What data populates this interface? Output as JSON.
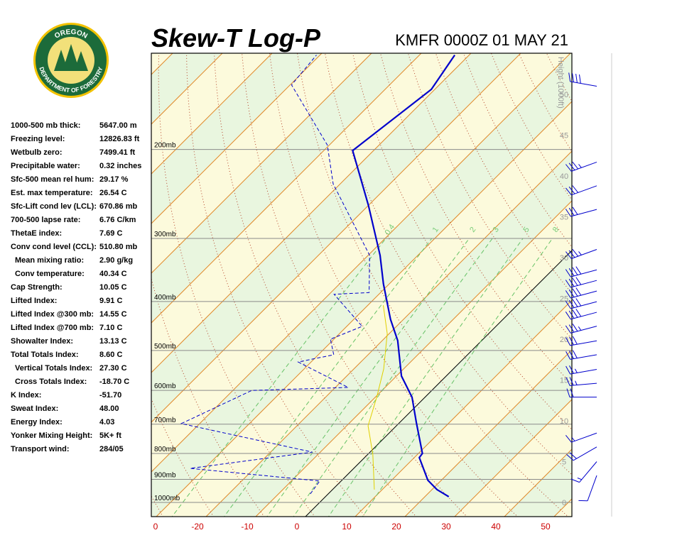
{
  "logo": {
    "top": "OREGON",
    "bottom": "DEPARTMENT OF FORESTRY"
  },
  "header": {
    "title": "Skew-T Log-P",
    "station": "KMFR 0000Z 01 MAY 21"
  },
  "indices": [
    {
      "label": "1000-500 mb thick:",
      "value": "5647.00 m"
    },
    {
      "label": "Freezing level:",
      "value": "12826.83 ft"
    },
    {
      "label": "Wetbulb zero:",
      "value": "7499.41 ft"
    },
    {
      "label": "Precipitable water:",
      "value": "0.32 inches"
    },
    {
      "label": "Sfc-500 mean rel hum:",
      "value": "29.17 %"
    },
    {
      "label": "Est. max temperature:",
      "value": "26.54 C"
    },
    {
      "label": "Sfc-Lift cond lev (LCL):",
      "value": "670.86 mb"
    },
    {
      "label": "700-500 lapse rate:",
      "value": "6.76 C/km"
    },
    {
      "label": "ThetaE index:",
      "value": "7.69 C"
    },
    {
      "label": "Conv cond level (CCL):",
      "value": "510.80 mb"
    },
    {
      "label": "Mean mixing ratio:",
      "value": "2.90 g/kg"
    },
    {
      "label": "Conv temperature:",
      "value": "40.34 C"
    },
    {
      "label": "Cap Strength:",
      "value": "10.05 C"
    },
    {
      "label": "Lifted Index:",
      "value": "9.91 C"
    },
    {
      "label": "Lifted Index @300 mb:",
      "value": "14.55 C"
    },
    {
      "label": "Lifted Index @700 mb:",
      "value": "7.10 C"
    },
    {
      "label": "Showalter Index:",
      "value": "13.13 C"
    },
    {
      "label": "Total Totals Index:",
      "value": "8.60 C"
    },
    {
      "label": "Vertical Totals Index:",
      "value": "27.30 C"
    },
    {
      "label": "Cross Totals Index:",
      "value": "-18.70 C"
    },
    {
      "label": "K Index:",
      "value": "-51.70"
    },
    {
      "label": "Sweat Index:",
      "value": "48.00"
    },
    {
      "label": "Energy Index:",
      "value": "4.03"
    },
    {
      "label": "Yonker Mixing Height:",
      "value": "5K+ ft"
    },
    {
      "label": "Transport wind:",
      "value": "284/05"
    }
  ],
  "chart_data": {
    "type": "skew-t",
    "xticks": [
      {
        "value": -30,
        "label": "0"
      },
      -20,
      -10,
      0,
      10,
      20,
      30,
      40,
      50
    ],
    "pressure_levels": [
      {
        "value": 200,
        "label": "200mb"
      },
      {
        "value": 300,
        "label": "300mb"
      },
      {
        "value": 400,
        "label": "400mb"
      },
      {
        "value": 500,
        "label": "500mb"
      },
      {
        "value": 600,
        "label": "600mb"
      },
      {
        "value": 700,
        "label": "700mb"
      },
      {
        "value": 800,
        "label": "800mb"
      },
      {
        "value": 900,
        "label": "900mb"
      },
      {
        "value": 1000,
        "label": "1000mb"
      }
    ],
    "height_axis": {
      "title": "Height (1000ft)",
      "ticks": [
        0,
        5,
        10,
        15,
        20,
        25,
        30,
        35,
        40,
        45,
        50
      ]
    },
    "mixing_ratio_labels": [
      0.4,
      1,
      2,
      3,
      5,
      8
    ],
    "series": [
      {
        "color": "#0000cc",
        "style": "solid",
        "pressure": [
          974,
          943,
          904,
          815,
          800,
          694,
          619,
          562,
          478,
          434,
          369,
          324,
          258,
          201,
          152,
          130
        ],
        "values": [
          24.8,
          21,
          17.3,
          11,
          10.8,
          3.3,
          -2.6,
          -9,
          -16.9,
          -22.6,
          -31.2,
          -37.6,
          -50,
          -64.2,
          -60.7,
          -62.9
        ]
      },
      {
        "color": "#0000cc",
        "style": "dashed",
        "pressure": [
          962,
          907,
          856,
          795,
          698,
          600,
          592,
          527,
          510,
          475,
          448,
          387,
          384,
          324,
          234,
          196,
          149,
          130
        ],
        "values": [
          -3.6,
          -4.3,
          -32.9,
          -11.6,
          -43.7,
          -36.2,
          -17.4,
          -32.6,
          -26.9,
          -30.7,
          -26.9,
          -39,
          -32.3,
          -39.7,
          -61.4,
          -70.4,
          -89.7,
          -90.7
        ]
      },
      {
        "color": "#e0d000",
        "style": "solid",
        "pressure": [
          943,
          803,
          705,
          619,
          544,
          463,
          407
        ],
        "values": [
          8.4,
          1,
          -5.7,
          -9.7,
          -14,
          -20.4,
          -26.9
        ]
      }
    ],
    "winds": {
      "height": [
        51,
        41.7,
        38.8,
        35.9,
        31,
        28.5,
        27.2,
        25.9,
        24.6,
        23.3,
        21.6,
        19.8,
        18.1,
        16.3,
        14.6,
        12.9,
        8.5,
        6.8,
        5,
        3.3
      ],
      "speed": [
        40,
        35,
        30,
        30,
        35,
        40,
        40,
        40,
        40,
        40,
        35,
        30,
        30,
        25,
        25,
        20,
        15,
        20,
        15,
        10
      ],
      "direction": [
        280,
        250,
        250,
        255,
        250,
        255,
        255,
        255,
        255,
        255,
        255,
        260,
        260,
        260,
        265,
        270,
        250,
        240,
        220,
        200
      ]
    }
  }
}
